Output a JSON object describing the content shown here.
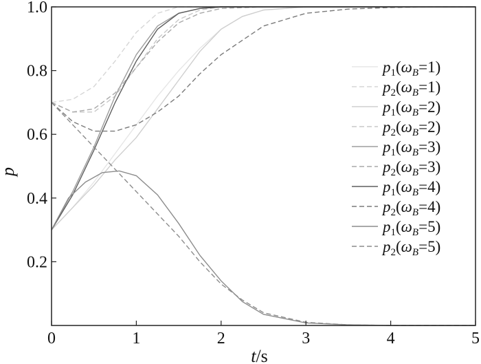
{
  "chart_data": {
    "type": "line",
    "xlabel_var": "t",
    "xlabel_unit": "/s",
    "ylabel": "p",
    "xlim": [
      0,
      5
    ],
    "ylim": [
      0,
      1.0
    ],
    "xticks": [
      "0",
      "1",
      "2",
      "3",
      "4",
      "5"
    ],
    "yticks": [
      "0.2",
      "0.4",
      "0.6",
      "0.8",
      "1.0"
    ],
    "legend_position": "right",
    "grid": false,
    "series": [
      {
        "label_main": "p",
        "label_sub": "1",
        "omega_value": "1",
        "style": "solid",
        "color": "#e6e6e6",
        "x": [
          0,
          0.25,
          0.5,
          0.75,
          1.0,
          1.25,
          1.5,
          1.75,
          2.0,
          2.25,
          2.5,
          3.0,
          3.5,
          4.0,
          5.0
        ],
        "y": [
          0.3,
          0.37,
          0.45,
          0.54,
          0.63,
          0.72,
          0.8,
          0.87,
          0.93,
          0.97,
          0.99,
          1.0,
          1.0,
          1.0,
          1.0
        ]
      },
      {
        "label_main": "p",
        "label_sub": "2",
        "omega_value": "1",
        "style": "dashed",
        "color": "#d6d6d6",
        "x": [
          0,
          0.25,
          0.5,
          0.75,
          1.0,
          1.25,
          1.5,
          1.75,
          2.0
        ],
        "y": [
          0.7,
          0.71,
          0.75,
          0.83,
          0.92,
          0.98,
          1.0,
          1.0,
          1.0
        ]
      },
      {
        "label_main": "p",
        "label_sub": "1",
        "omega_value": "2",
        "style": "solid",
        "color": "#cfcfcf",
        "x": [
          0,
          0.25,
          0.5,
          0.75,
          1.0,
          1.25,
          1.5,
          1.75,
          2.0,
          2.25,
          2.5,
          3.0,
          3.5,
          5.0
        ],
        "y": [
          0.3,
          0.37,
          0.44,
          0.52,
          0.59,
          0.68,
          0.77,
          0.86,
          0.93,
          0.97,
          0.99,
          1.0,
          1.0,
          1.0
        ]
      },
      {
        "label_main": "p",
        "label_sub": "2",
        "omega_value": "2",
        "style": "dashed",
        "color": "#c8c8c8",
        "x": [
          0,
          0.25,
          0.5,
          0.75,
          1.0,
          1.25,
          1.5,
          1.75,
          2.0,
          2.25
        ],
        "y": [
          0.7,
          0.67,
          0.67,
          0.72,
          0.81,
          0.9,
          0.96,
          0.99,
          1.0,
          1.0
        ]
      },
      {
        "label_main": "p",
        "label_sub": "1",
        "omega_value": "3",
        "style": "solid",
        "color": "#9e9e9e",
        "x": [
          0,
          0.25,
          0.5,
          0.75,
          1.0,
          1.25,
          1.5,
          1.75,
          2.0,
          2.5,
          3.0,
          5.0
        ],
        "y": [
          0.3,
          0.42,
          0.56,
          0.72,
          0.85,
          0.94,
          0.98,
          0.995,
          1.0,
          1.0,
          1.0,
          1.0
        ]
      },
      {
        "label_main": "p",
        "label_sub": "2",
        "omega_value": "3",
        "style": "dashed",
        "color": "#a8a8a8",
        "x": [
          0,
          0.25,
          0.5,
          0.75,
          1.0,
          1.25,
          1.5,
          1.75,
          2.0,
          2.5
        ],
        "y": [
          0.7,
          0.67,
          0.68,
          0.73,
          0.81,
          0.89,
          0.95,
          0.98,
          0.995,
          1.0
        ]
      },
      {
        "label_main": "p",
        "label_sub": "1",
        "omega_value": "4",
        "style": "solid",
        "color": "#5e5e5e",
        "x": [
          0,
          0.25,
          0.5,
          0.75,
          1.0,
          1.25,
          1.5,
          1.75,
          2.0,
          2.5,
          3.0,
          5.0
        ],
        "y": [
          0.3,
          0.41,
          0.55,
          0.7,
          0.83,
          0.93,
          0.98,
          0.995,
          1.0,
          1.0,
          1.0,
          1.0
        ]
      },
      {
        "label_main": "p",
        "label_sub": "2",
        "omega_value": "4",
        "style": "dashed",
        "color": "#7a7a7a",
        "x": [
          0,
          0.25,
          0.5,
          0.75,
          1.0,
          1.25,
          1.5,
          1.75,
          2.0,
          2.5,
          3.0,
          3.5,
          4.0,
          4.5,
          5.0
        ],
        "y": [
          0.7,
          0.64,
          0.61,
          0.61,
          0.63,
          0.67,
          0.72,
          0.79,
          0.85,
          0.94,
          0.98,
          0.993,
          0.998,
          1.0,
          1.0
        ]
      },
      {
        "label_main": "p",
        "label_sub": "1",
        "omega_value": "5",
        "style": "solid",
        "color": "#8c8c8c",
        "x": [
          0,
          0.2,
          0.4,
          0.6,
          0.8,
          1.0,
          1.25,
          1.5,
          1.75,
          2.0,
          2.25,
          2.5,
          3.0,
          3.5,
          4.0,
          5.0
        ],
        "y": [
          0.3,
          0.4,
          0.45,
          0.48,
          0.485,
          0.47,
          0.41,
          0.32,
          0.22,
          0.14,
          0.075,
          0.035,
          0.008,
          0.002,
          0.0,
          0.0
        ]
      },
      {
        "label_main": "p",
        "label_sub": "2",
        "omega_value": "5",
        "style": "dashed",
        "color": "#8c8c8c",
        "x": [
          0,
          0.25,
          0.5,
          0.75,
          1.0,
          1.25,
          1.5,
          1.75,
          2.0,
          2.25,
          2.5,
          3.0,
          3.5,
          4.0,
          5.0
        ],
        "y": [
          0.7,
          0.63,
          0.56,
          0.49,
          0.42,
          0.35,
          0.28,
          0.2,
          0.13,
          0.08,
          0.04,
          0.01,
          0.002,
          0.0,
          0.0
        ]
      }
    ]
  }
}
